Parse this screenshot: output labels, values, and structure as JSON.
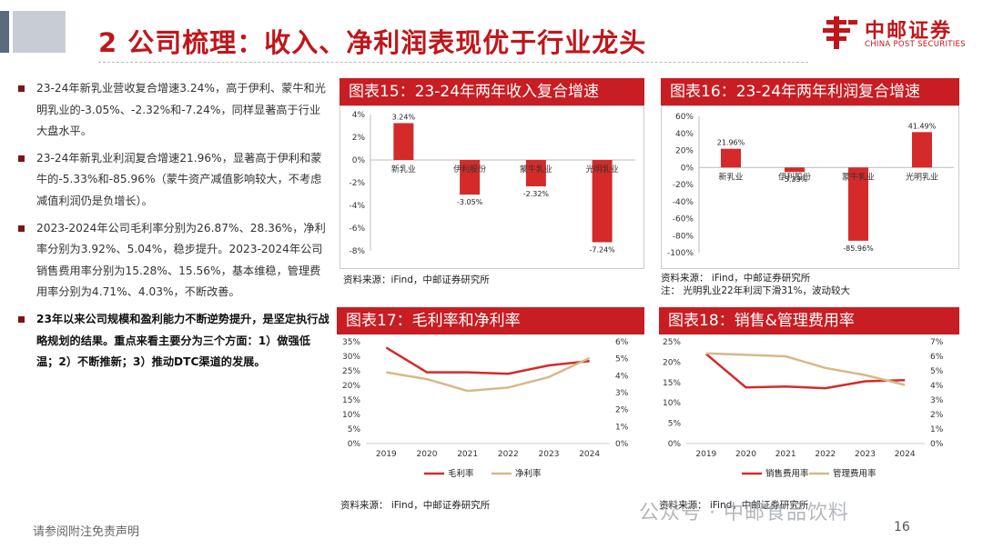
{
  "header": {
    "title": "2 公司梳理：收入、净利润表现优于行业龙头"
  },
  "logo": {
    "cn": "中邮证券",
    "en": "CHINA POST SECURITIES",
    "color": "#c0161b"
  },
  "bullets": [
    {
      "text": "23-24年新乳业营收复合增速3.24%，高于伊利、蒙牛和光明乳业的-3.05%、-2.32%和-7.24%，同样显著高于行业大盘水平。",
      "bold": false
    },
    {
      "text": "23-24年新乳业利润复合增速21.96%，显著高于伊利和蒙牛的-5.33%和-85.96%（蒙牛资产减值影响较大，不考虑减值利润仍是负增长）。",
      "bold": false
    },
    {
      "text": "2023-2024年公司毛利率分别为26.87%、28.36%，净利率分别为3.92%、5.04%，稳步提升。2023-2024年公司销售费用率分别为15.28%、15.56%，基本维稳，管理费用率分别为4.71%、4.03%，不断改善。",
      "bold": false
    },
    {
      "text": "23年以来公司规模和盈利能力不断逆势提升，是坚定执行战略规划的结果。重点来看主要分为三个方面：1）做强低温；2）不断推新；3）推动DTC渠道的发展。",
      "bold": true
    }
  ],
  "charts": [
    {
      "panel_title": "图表15：23-24年两年收入复合增速",
      "source": "资料来源：iFind，中邮证券研究所",
      "note": ""
    },
    {
      "panel_title": "图表16：23-24年两年利润复合增速",
      "source": "资料来源： iFind，中邮证券研究所",
      "note": "注： 光明乳业22年利润下滑31%，波动较大"
    },
    {
      "panel_title": "图表17：毛利率和净利率",
      "source": "资料来源： iFind，中邮证券研究所",
      "note": ""
    },
    {
      "panel_title": "图表18：销售&管理费用率",
      "source": "资料来源： iFind，中邮证券研究所",
      "note": ""
    }
  ],
  "chart_data": [
    {
      "type": "bar",
      "title": "图表15：23-24年两年收入复合增速",
      "categories": [
        "新乳业",
        "伊利股份",
        "蒙牛乳业",
        "光明乳业"
      ],
      "values": [
        3.24,
        -3.05,
        -2.32,
        -7.24
      ],
      "labels": [
        "3.24%",
        "-3.05%",
        "-2.32%",
        "-7.24%"
      ],
      "ylim": [
        -8,
        4
      ],
      "yticks": [
        4,
        2,
        0,
        -2,
        -4,
        -6,
        -8
      ],
      "ytick_labels": [
        "4%",
        "2%",
        "0%",
        "-2%",
        "-4%",
        "-6%",
        "-8%"
      ]
    },
    {
      "type": "bar",
      "title": "图表16：23-24年两年利润复合增速",
      "categories": [
        "新乳业",
        "伊利股份",
        "蒙牛乳业",
        "光明乳业"
      ],
      "values": [
        21.96,
        -5.33,
        -85.96,
        41.49
      ],
      "labels": [
        "21.96%",
        "-5.33%",
        "-85.96%",
        "41.49%"
      ],
      "ylim": [
        -100,
        60
      ],
      "yticks": [
        60,
        40,
        20,
        0,
        -20,
        -40,
        -60,
        -80,
        -100
      ],
      "ytick_labels": [
        "60%",
        "40%",
        "20%",
        "0%",
        "-20%",
        "-40%",
        "-60%",
        "-80%",
        "-100%"
      ]
    },
    {
      "type": "line",
      "title": "图表17：毛利率和净利率",
      "x": [
        "2019",
        "2020",
        "2021",
        "2022",
        "2023",
        "2024"
      ],
      "series": [
        {
          "name": "毛利率",
          "axis": "left",
          "color": "#d42a2a",
          "values": [
            33.0,
            24.5,
            24.5,
            24.0,
            26.87,
            28.36
          ]
        },
        {
          "name": "净利率",
          "axis": "right",
          "color": "#d8b888",
          "values": [
            4.2,
            3.8,
            3.1,
            3.3,
            3.92,
            5.04
          ]
        }
      ],
      "ylim_left": [
        0,
        35
      ],
      "yticks_left": [
        "35%",
        "30%",
        "25%",
        "20%",
        "15%",
        "10%",
        "5%",
        "0%"
      ],
      "ylim_right": [
        0,
        6
      ],
      "yticks_right": [
        "6%",
        "5%",
        "4%",
        "3%",
        "2%",
        "1%",
        "0%"
      ]
    },
    {
      "type": "line",
      "title": "图表18：销售&管理费用率",
      "x": [
        "2019",
        "2020",
        "2021",
        "2022",
        "2023",
        "2024"
      ],
      "series": [
        {
          "name": "销售费用率",
          "axis": "left",
          "color": "#d42a2a",
          "values": [
            22.0,
            13.8,
            14.0,
            13.6,
            15.28,
            15.56
          ]
        },
        {
          "name": "管理费用率",
          "axis": "right",
          "color": "#d8b888",
          "values": [
            6.2,
            6.1,
            6.0,
            5.2,
            4.71,
            4.03
          ]
        }
      ],
      "ylim_left": [
        0,
        25
      ],
      "yticks_left": [
        "25%",
        "20%",
        "15%",
        "10%",
        "5%",
        "0%"
      ],
      "ylim_right": [
        0,
        7
      ],
      "yticks_right": [
        "7%",
        "6%",
        "5%",
        "4%",
        "3%",
        "2%",
        "1%",
        "0%"
      ]
    }
  ],
  "footer": {
    "disclaimer": "请参阅附注免责声明",
    "page": "16",
    "watermark": "公众号 · 中邮食品饮料"
  }
}
